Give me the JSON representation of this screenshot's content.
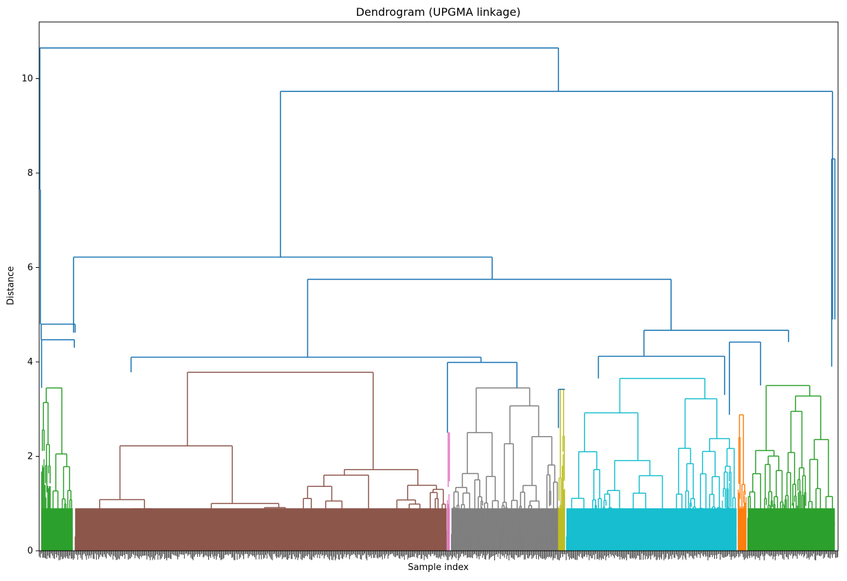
{
  "chart_data": {
    "type": "dendrogram",
    "title": "Dendrogram (UPGMA linkage)",
    "xlabel": "Sample index",
    "ylabel": "Distance",
    "ylim": [
      0,
      11.2
    ],
    "yticks": [
      0,
      2,
      4,
      6,
      8,
      10
    ],
    "grid": false,
    "link_color_default": "#1f77b4",
    "clusters": [
      {
        "color": "#2ca02c",
        "from": 0.003,
        "to": 0.042,
        "height": 3.45
      },
      {
        "color": "#8c564b",
        "from": 0.045,
        "to": 0.51,
        "height": 3.78
      },
      {
        "color": "#e377c2",
        "from": 0.511,
        "to": 0.514,
        "height": 2.5
      },
      {
        "color": "#7f7f7f",
        "from": 0.516,
        "to": 0.65,
        "height": 3.45
      },
      {
        "color": "#bcbd22",
        "from": 0.65,
        "to": 0.658,
        "height": 3.42
      },
      {
        "color": "#17becf",
        "from": 0.66,
        "to": 0.873,
        "height": 3.65
      },
      {
        "color": "#ff7f0e",
        "from": 0.875,
        "to": 0.885,
        "height": 2.88
      },
      {
        "color": "#2ca02c",
        "from": 0.887,
        "to": 0.996,
        "height": 3.5
      }
    ],
    "top_links": [
      {
        "x1": 0.5,
        "y1": 4.8,
        "x2": 0.5,
        "y2": 4.8
      },
      {
        "left": 0.003,
        "right": 0.042,
        "height": 4.8
      },
      {
        "left": 0.043,
        "right": 0.044,
        "height": 4.62
      },
      {
        "left": 0.12,
        "right": 0.553,
        "height": 4.1
      },
      {
        "left": 0.511,
        "right": 0.598,
        "height": 3.99
      },
      {
        "left": 0.336,
        "right": 0.791,
        "height": 5.75
      },
      {
        "left": 0.042,
        "right": 0.567,
        "height": 6.22
      },
      {
        "left": 0.7,
        "right": 0.885,
        "height": 4.42
      },
      {
        "left": 0.757,
        "right": 0.938,
        "height": 4.67
      },
      {
        "left": 0.302,
        "right": 0.996,
        "height": 9.73
      },
      {
        "left": 0.002,
        "right": 0.65,
        "height": 10.65
      }
    ]
  }
}
